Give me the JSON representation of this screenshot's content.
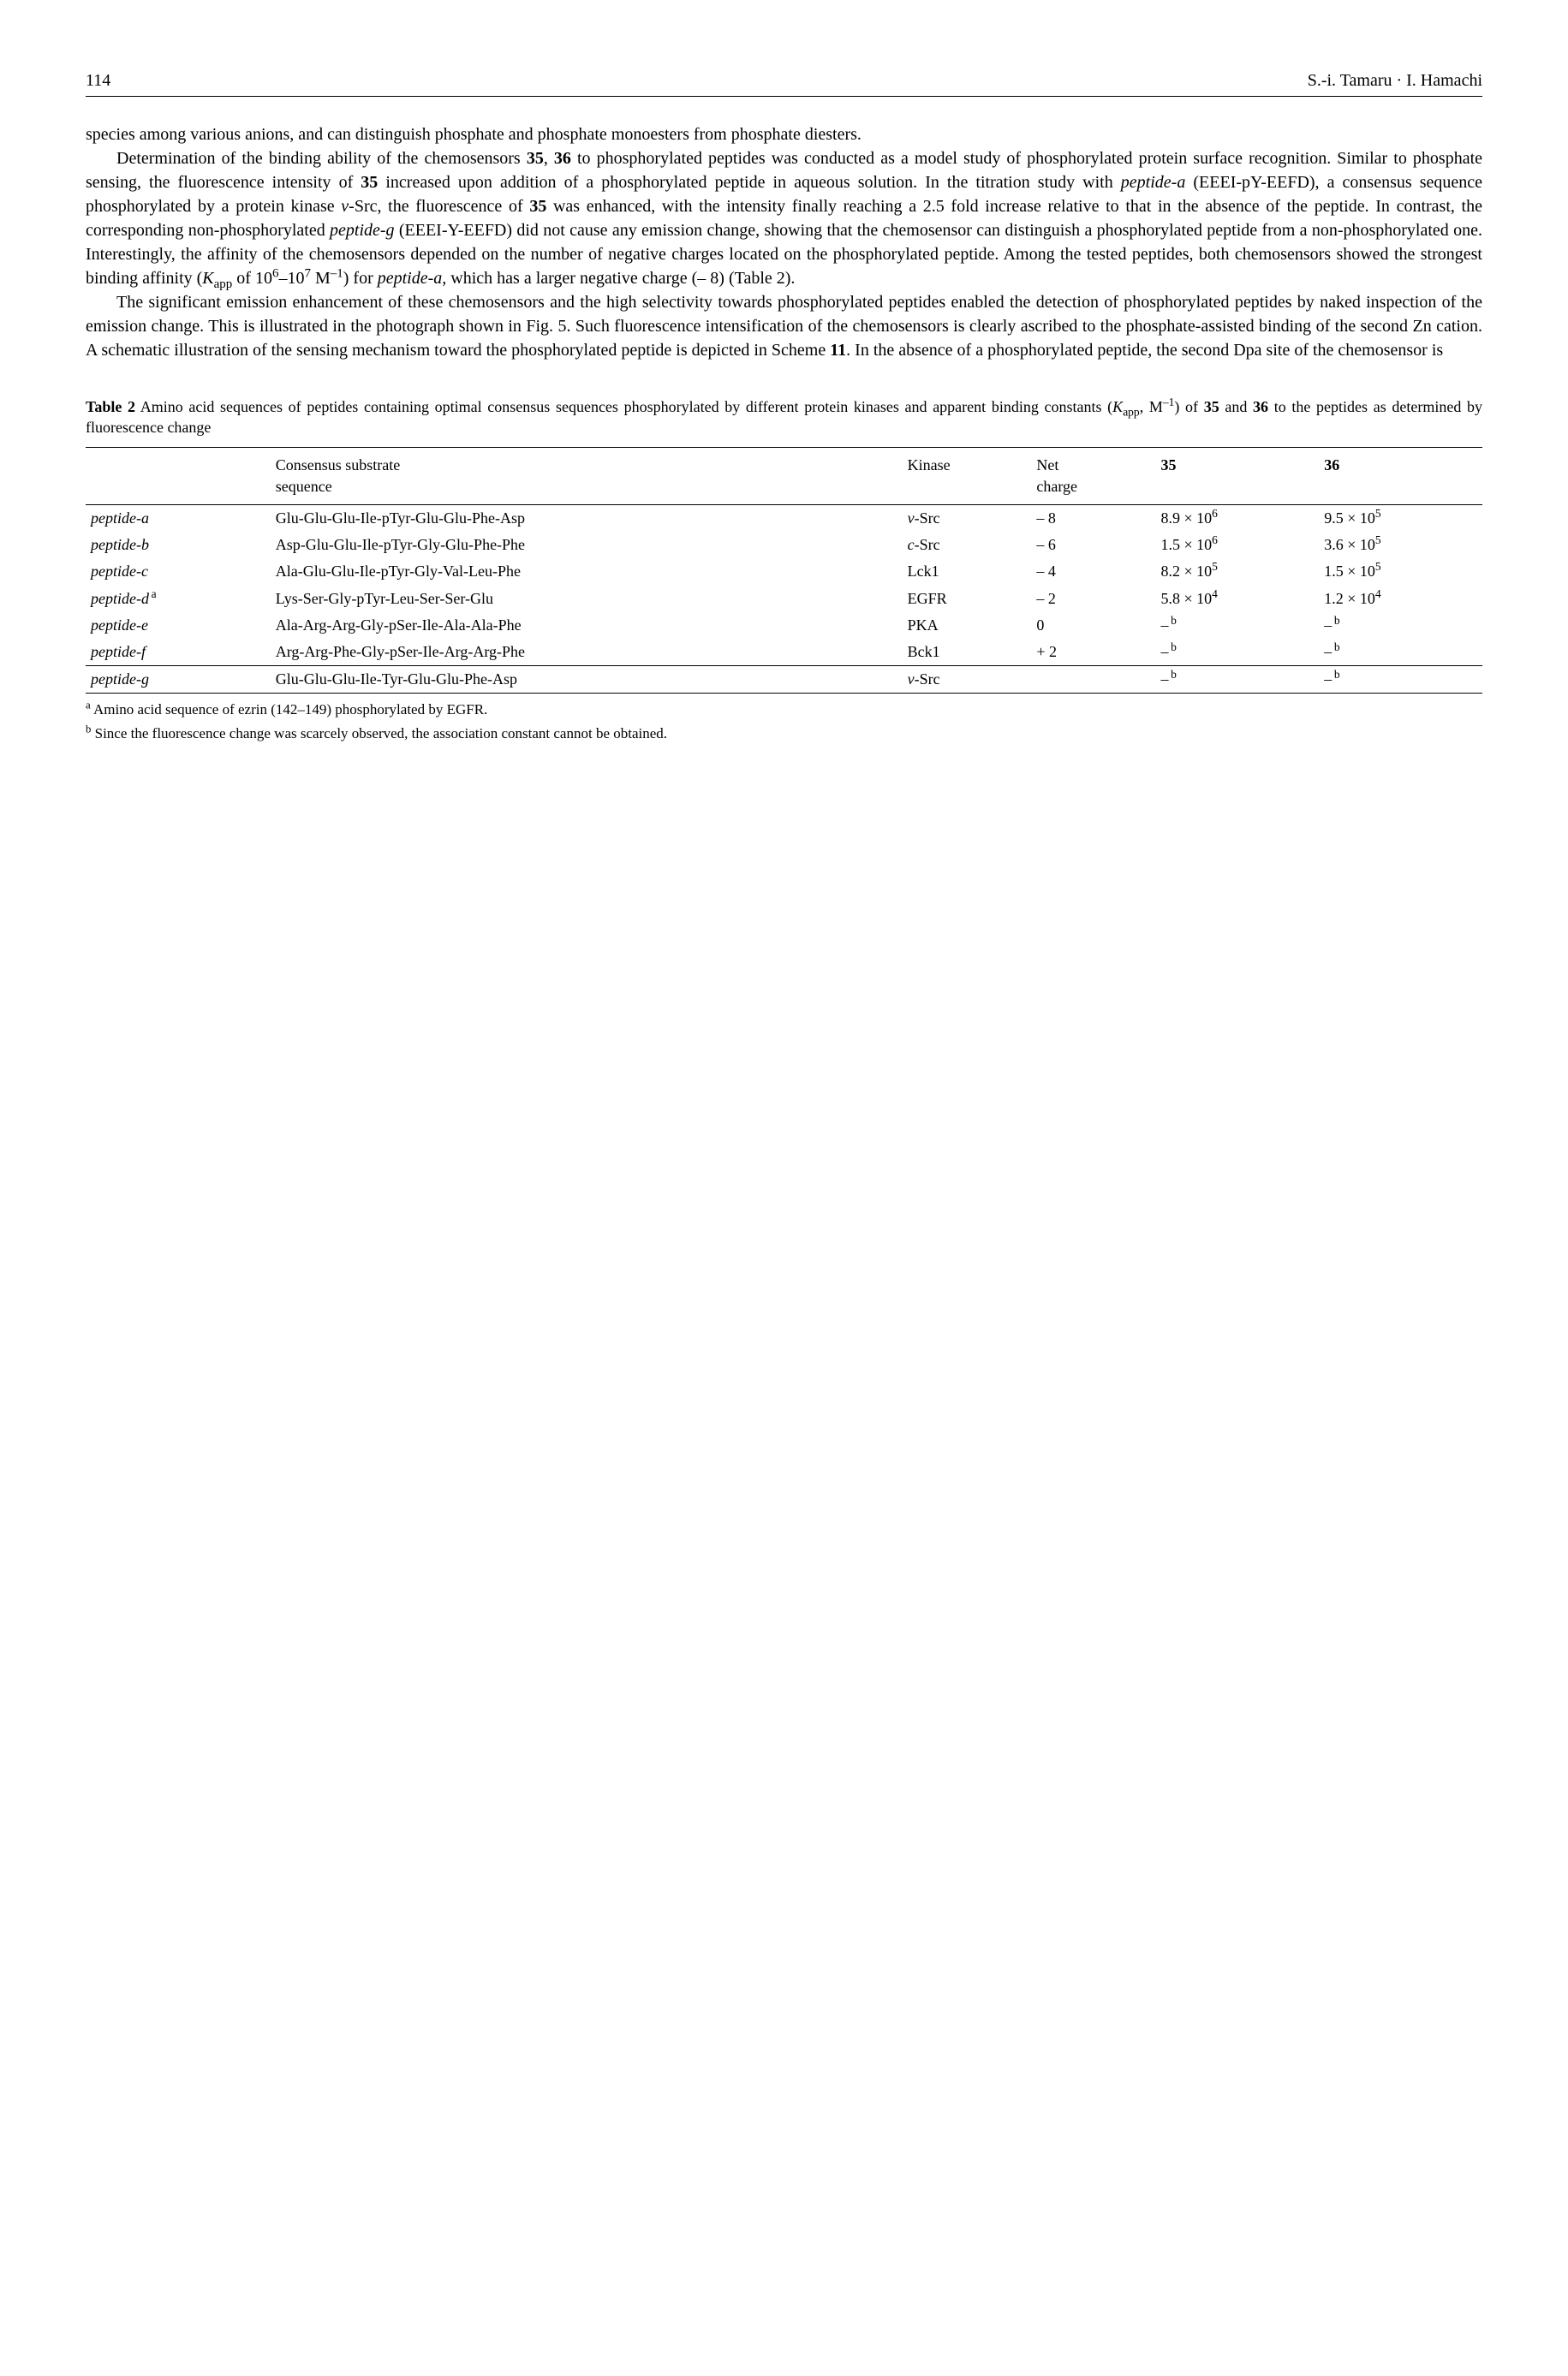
{
  "header": {
    "pageNumber": "114",
    "authors": "S.-i. Tamaru · I. Hamachi"
  },
  "para0": "species among various anions, and can distinguish phosphate and phosphate monoesters from phosphate diesters.",
  "para1_pre": "Determination of the binding ability of the chemosensors ",
  "s35a": "35",
  "para1_mid1": ", ",
  "s36a": "36",
  "para1_mid2": " to phosphorylated peptides was conducted as a model study of phosphorylated protein surface recognition. Similar to phosphate sensing, the fluorescence intensity of ",
  "s35b": "35",
  "para1_mid3": " increased upon addition of a phosphorylated peptide in aqueous solution. In the titration study with ",
  "pep_a1": "peptide-a",
  "para1_mid4": " (EEEI-pY-EEFD), a consensus sequence phosphorylated by a protein kinase ",
  "vsrc": "v",
  "vsrc_rest": "-Src, the fluorescence of ",
  "s35c": "35",
  "para1_mid5": " was enhanced, with the intensity finally reaching a 2.5 fold increase relative to that in the absence of the peptide. In contrast, the corresponding non-phosphorylated ",
  "pep_g1": "peptide-g",
  "para1_mid6": " (EEEI-Y-EEFD) did not cause any emission change, showing that the chemosensor can distinguish a phosphorylated peptide from a non-phosphorylated one. Interestingly, the affinity of the chemosensors depended on the number of negative charges located on the phosphorylated peptide. Among the tested peptides, both chemosensors showed the strongest binding affinity (",
  "kapp": "K",
  "kapp_sub": "app",
  "para1_mid7": " of 10",
  "exp6": "6",
  "dash": "–10",
  "exp7": "7",
  "m_inv": " M",
  "neg1": "–1",
  "para1_mid8": ") for ",
  "pep_a2": "peptide-a",
  "para1_end": ", which has a larger negative charge (– 8) (Table 2).",
  "para2_pre": "The significant emission enhancement of these chemosensors and the high selectivity towards phosphorylated peptides enabled the detection of phosphorylated peptides by naked inspection of the emission change. This is illustrated in the photograph shown in Fig. 5. Such fluorescence intensification of the chemosensors is clearly ascribed to the phosphate-assisted binding of the second Zn cation. A schematic illustration of the sensing mechanism toward the phosphorylated peptide is depicted in Scheme ",
  "sch11": "11",
  "para2_end": ". In the absence of a phosphorylated peptide, the second Dpa site of the chemosensor is",
  "table": {
    "caption_label": "Table 2",
    "caption_text1": "  Amino acid sequences of peptides containing optimal consensus sequences phosphorylated by different protein kinases and apparent binding constants (",
    "caption_k": "K",
    "caption_ksub": "app",
    "caption_text2": ", M",
    "caption_exp": "–1",
    "caption_text3": ") of ",
    "caption_35": "35",
    "caption_text4": " and ",
    "caption_36": "36",
    "caption_text5": " to the peptides as determined by fluorescence change",
    "columns": {
      "c1": "",
      "c2a": "Consensus substrate",
      "c2b": "sequence",
      "c3": "Kinase",
      "c4a": "Net",
      "c4b": "charge",
      "c5": "35",
      "c6": "36"
    },
    "rows": [
      {
        "p": "peptide-a",
        "seq": "Glu-Glu-Glu-Ile-pTyr-Glu-Glu-Phe-Asp",
        "k_pre": "ν",
        "k": "-Src",
        "nc": "– 8",
        "v35": "8.9 × 10",
        "e35": "6",
        "v36": "9.5 × 10",
        "e36": "5"
      },
      {
        "p": "peptide-b",
        "seq": "Asp-Glu-Glu-Ile-pTyr-Gly-Glu-Phe-Phe",
        "k_pre": "c",
        "k": "-Src",
        "nc": "– 6",
        "v35": "1.5 × 10",
        "e35": "6",
        "v36": "3.6 × 10",
        "e36": "5"
      },
      {
        "p": "peptide-c",
        "seq": "Ala-Glu-Glu-Ile-pTyr-Gly-Val-Leu-Phe",
        "k_pre": "",
        "k": "Lck1",
        "nc": "– 4",
        "v35": "8.2 × 10",
        "e35": "5",
        "v36": "1.5 × 10",
        "e36": "5"
      },
      {
        "p": "peptide-d",
        "sup": "a",
        "seq": "Lys-Ser-Gly-pTyr-Leu-Ser-Ser-Glu",
        "k_pre": "",
        "k": "EGFR",
        "nc": "– 2",
        "v35": "5.8 × 10",
        "e35": "4",
        "v36": "1.2 × 10",
        "e36": "4"
      },
      {
        "p": "peptide-e",
        "seq": "Ala-Arg-Arg-Gly-pSer-Ile-Ala-Ala-Phe",
        "k_pre": "",
        "k": "PKA",
        "nc": "0",
        "v35": "–",
        "e35": "b",
        "v36": "–",
        "e36": "b",
        "dash35": true,
        "dash36": true
      },
      {
        "p": "peptide-f",
        "seq": "Arg-Arg-Phe-Gly-pSer-Ile-Arg-Arg-Phe",
        "k_pre": "",
        "k": "Bck1",
        "nc": "+ 2",
        "v35": "–",
        "e35": "b",
        "v36": "–",
        "e36": "b",
        "dash35": true,
        "dash36": true
      }
    ],
    "row_g": {
      "p": "peptide-g",
      "seq": "Glu-Glu-Glu-Ile-Tyr-Glu-Glu-Phe-Asp",
      "k_pre": "ν",
      "k": "-Src",
      "nc": "",
      "v35": "–",
      "e35": "b",
      "v36": "–",
      "e36": "b"
    }
  },
  "footnotes": {
    "a_sup": "a",
    "a": " Amino acid sequence of ezrin (142–149) phosphorylated by EGFR.",
    "b_sup": "b",
    "b": " Since the fluorescence change was scarcely observed, the association constant cannot be obtained."
  }
}
